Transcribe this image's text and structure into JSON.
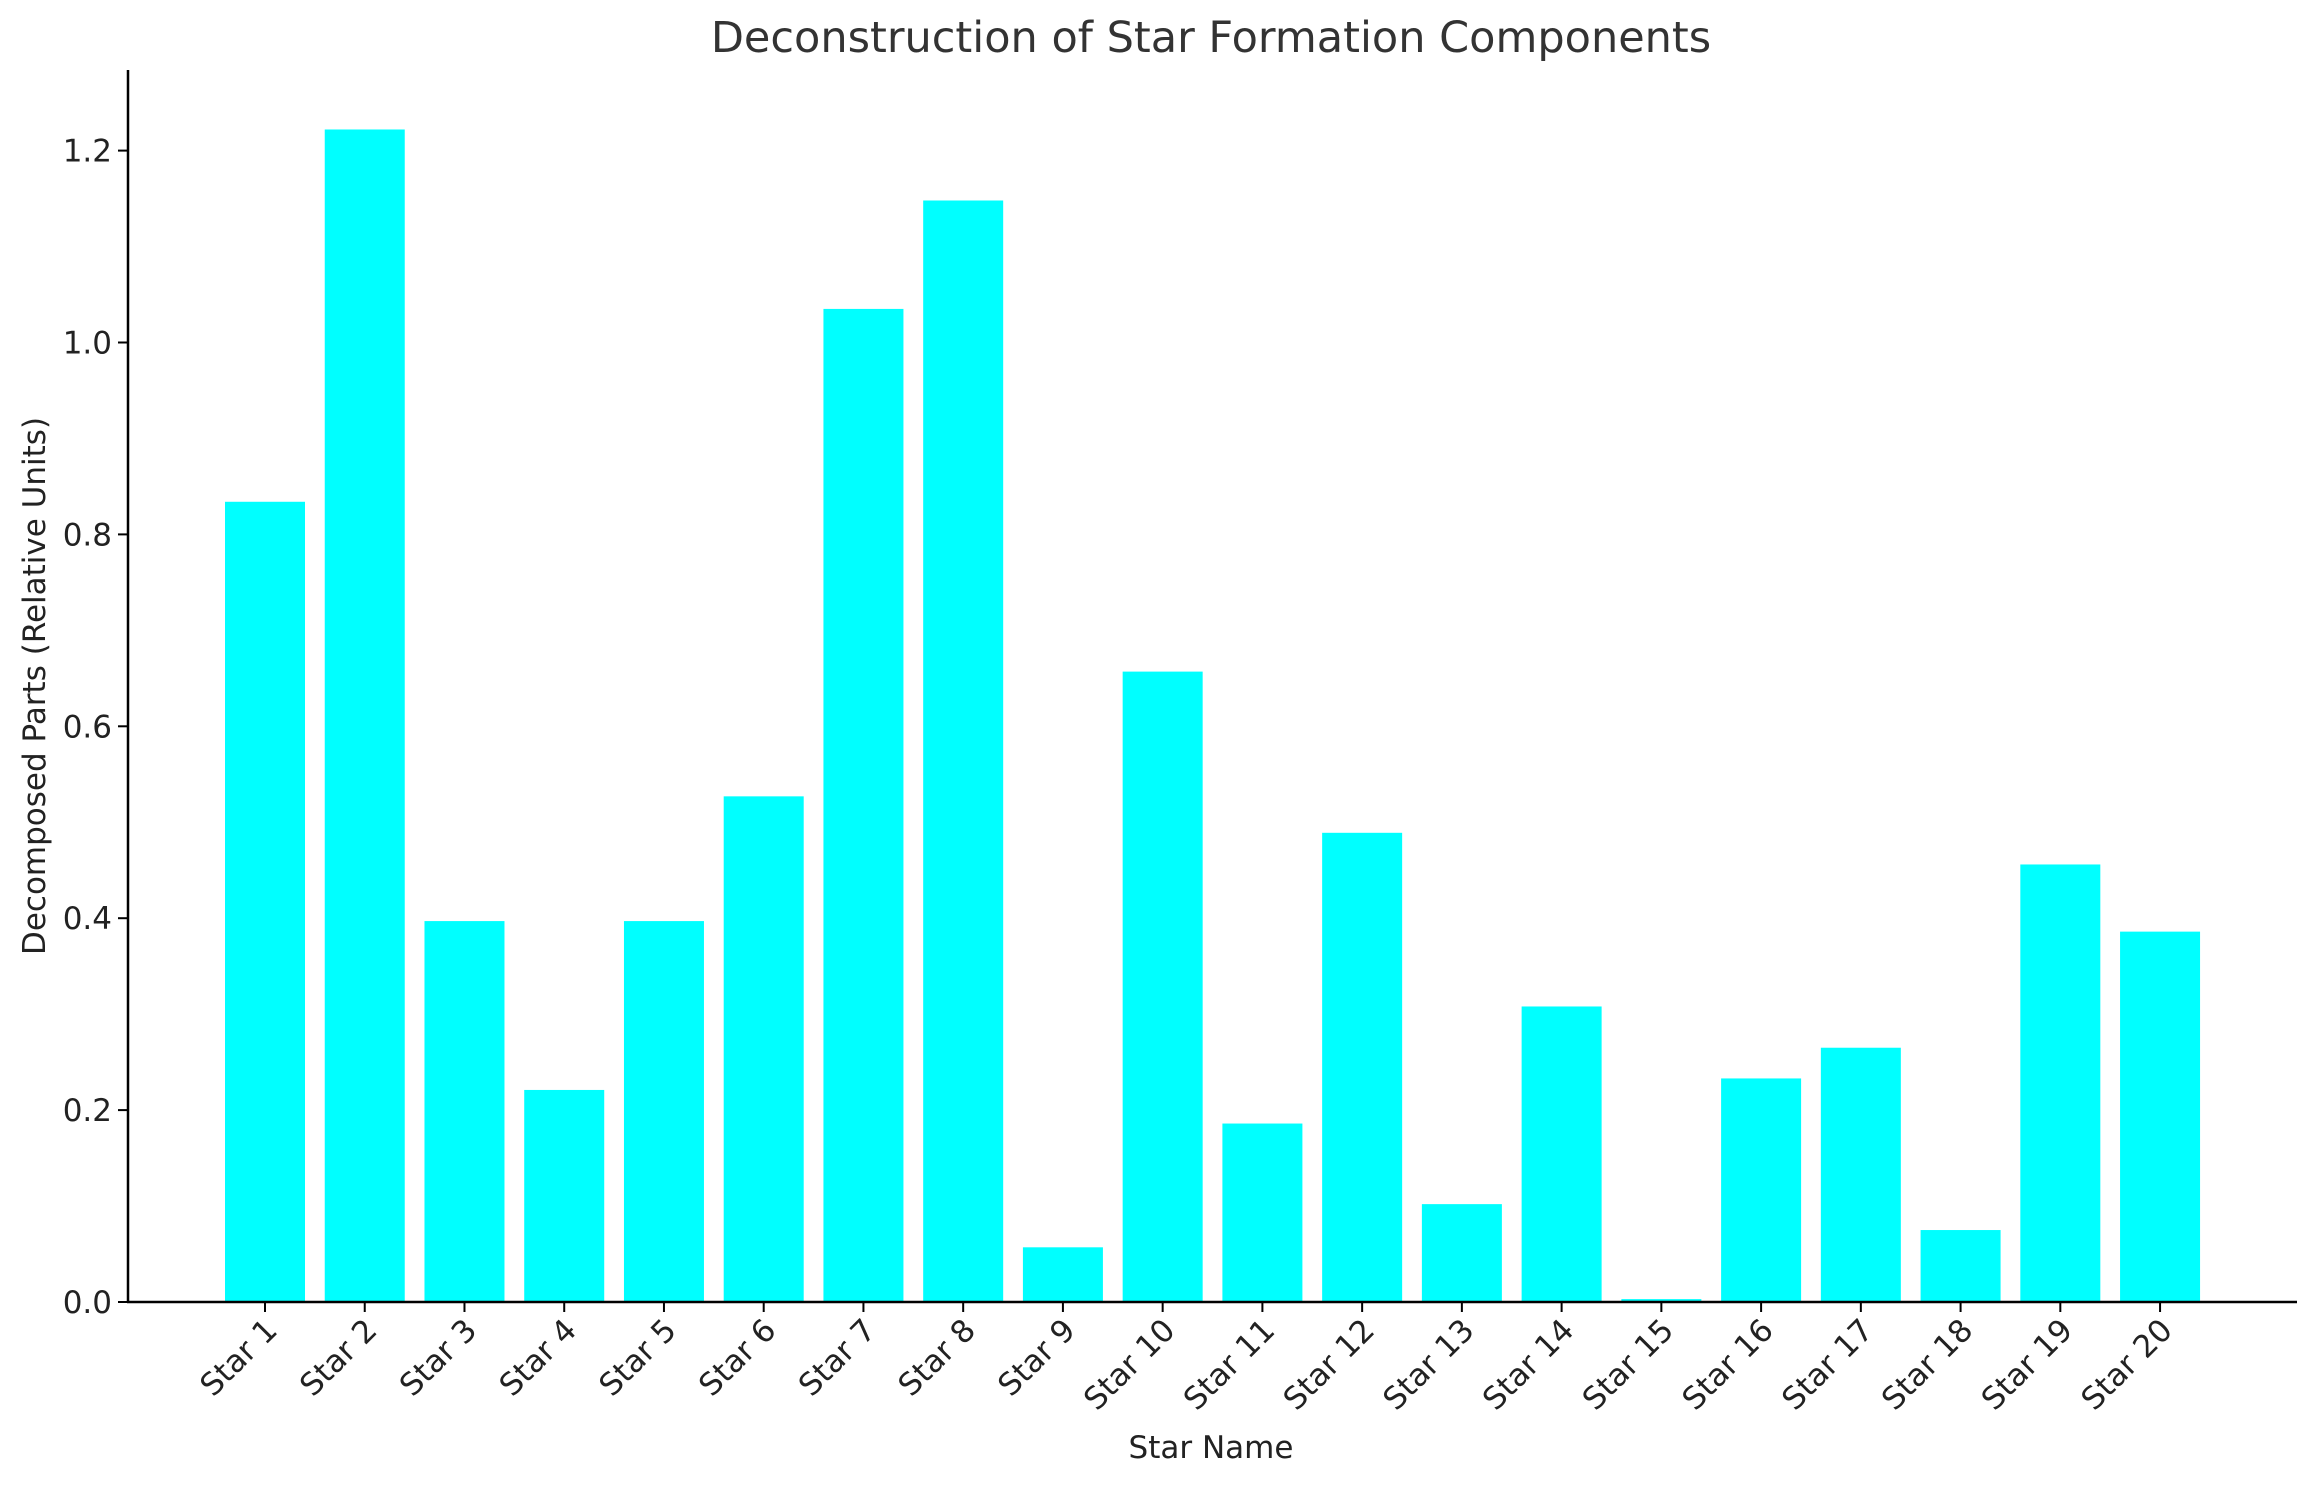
{
  "chart_data": {
    "type": "bar",
    "title": "Deconstruction of Star Formation Components",
    "xlabel": "Star Name",
    "ylabel": "Decomposed Parts (Relative Units)",
    "categories": [
      "Star 1",
      "Star 2",
      "Star 3",
      "Star 4",
      "Star 5",
      "Star 6",
      "Star 7",
      "Star 8",
      "Star 9",
      "Star 10",
      "Star 11",
      "Star 12",
      "Star 13",
      "Star 14",
      "Star 15",
      "Star 16",
      "Star 17",
      "Star 18",
      "Star 19",
      "Star 20"
    ],
    "values": [
      0.834,
      1.222,
      0.397,
      0.221,
      0.397,
      0.527,
      1.035,
      1.148,
      0.057,
      0.657,
      0.186,
      0.489,
      0.102,
      0.308,
      0.003,
      0.233,
      0.265,
      0.075,
      0.456,
      0.386
    ],
    "yticks": [
      "0.0",
      "0.2",
      "0.4",
      "0.6",
      "0.8",
      "1.0",
      "1.2"
    ],
    "ylim": [
      0,
      1.284
    ],
    "bar_color": "#00ffff",
    "grid": false,
    "legend": "none"
  }
}
